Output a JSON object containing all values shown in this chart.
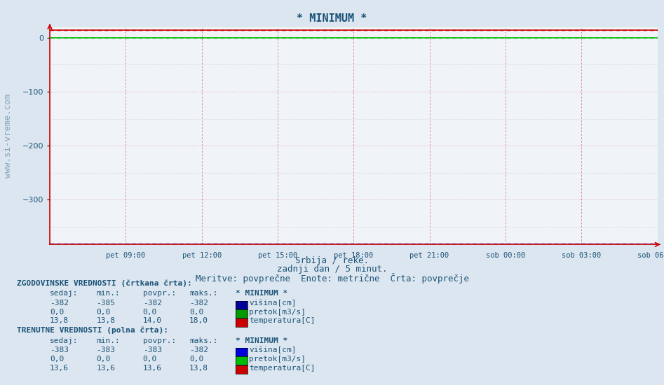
{
  "title": "* MINIMUM *",
  "title_color": "#1a5276",
  "title_fontsize": 11,
  "bg_color": "#dce6f0",
  "plot_bg_color": "#f0f4f8",
  "ylabel_color": "#1a5276",
  "watermark": "www.si-vreme.com",
  "subtitle1": "Srbija / reke.",
  "subtitle2": "zadnji dan / 5 minut.",
  "subtitle3": "Meritve: povprečne  Enote: metrične  Črta: povprečje",
  "x_tick_labels": [
    "pet 09:00",
    "pet 12:00",
    "pet 15:00",
    "pet 18:00",
    "pet 21:00",
    "sob 00:00",
    "sob 03:00",
    "sob 06:00"
  ],
  "ylim_min": -383,
  "ylim_max": 20,
  "yticks": [
    0,
    -100,
    -200,
    -300
  ],
  "n_points": 288,
  "hist_visina": -382,
  "hist_pretok": 0.0,
  "hist_temp": 14.0,
  "cur_visina": -383,
  "cur_pretok": 0.0,
  "cur_temp": 13.6,
  "color_visina_hist": "#000099",
  "color_pretok_hist": "#009900",
  "color_temp_hist": "#cc0000",
  "color_visina_cur": "#0000dd",
  "color_pretok_cur": "#00bb00",
  "color_temp_cur": "#cc0000",
  "spine_color": "#cc0000",
  "vgrid_color": "#cc6666",
  "hgrid_color_major": "#cc8888",
  "hgrid_color_minor": "#aabbaa",
  "text_color": "#1a5276",
  "legend_visina_hist": "#000099",
  "legend_pretok_hist": "#009900",
  "legend_temp_hist": "#cc0000",
  "legend_visina_cur": "#0000dd",
  "legend_pretok_cur": "#00bb00",
  "legend_temp_cur": "#cc0000"
}
